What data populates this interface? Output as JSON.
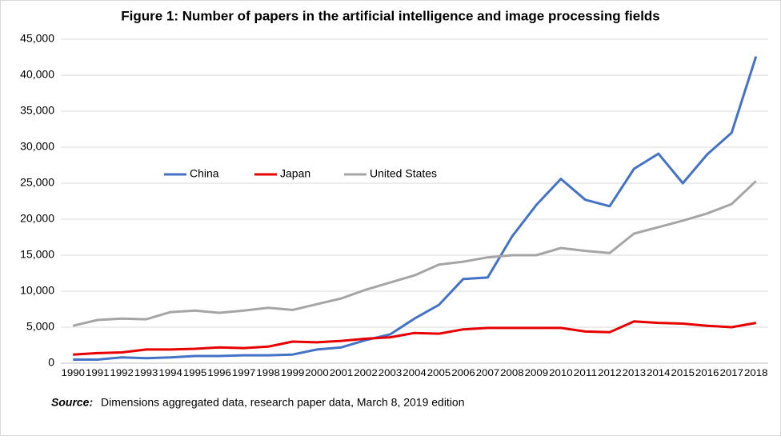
{
  "chart_data": {
    "type": "line",
    "title": "Figure 1: Number of papers in the artificial intelligence and image processing fields",
    "source_label": "Source:",
    "source_text": "Dimensions aggregated data, research paper data, March 8, 2019 edition",
    "categories": [
      "1990",
      "1991",
      "1992",
      "1993",
      "1994",
      "1995",
      "1996",
      "1997",
      "1998",
      "1999",
      "2000",
      "2001",
      "2002",
      "2003",
      "2004",
      "2005",
      "2006",
      "2007",
      "2008",
      "2009",
      "2010",
      "2011",
      "2012",
      "2013",
      "2014",
      "2015",
      "2016",
      "2017",
      "2018"
    ],
    "series": [
      {
        "name": "China",
        "color": "#4472c4",
        "values": [
          500,
          500,
          800,
          700,
          800,
          1000,
          1000,
          1100,
          1100,
          1200,
          1900,
          2200,
          3200,
          4000,
          6200,
          8100,
          11700,
          11900,
          17600,
          22000,
          25600,
          22700,
          21800,
          27000,
          29100,
          25000,
          29000,
          32000,
          42600
        ]
      },
      {
        "name": "Japan",
        "color": "#e60000",
        "values": [
          1200,
          1400,
          1500,
          1900,
          1900,
          2000,
          2200,
          2100,
          2300,
          3000,
          2900,
          3100,
          3400,
          3600,
          4200,
          4100,
          4700,
          4900,
          4900,
          4900,
          4900,
          4400,
          4300,
          5800,
          5600,
          5500,
          5200,
          5000,
          5600
        ]
      },
      {
        "name": "United States",
        "color": "#a5a5a5",
        "values": [
          5200,
          6000,
          6200,
          6100,
          7100,
          7300,
          7000,
          7300,
          7700,
          7400,
          8200,
          9000,
          10200,
          11200,
          12200,
          13700,
          14100,
          14700,
          15000,
          15000,
          16000,
          15600,
          15300,
          18000,
          18900,
          19800,
          20800,
          22100,
          25300
        ]
      }
    ],
    "ylim": [
      0,
      45000
    ],
    "yticks": [
      0,
      {
        "value": 5000,
        "label": "5,000"
      },
      {
        "value": 10000,
        "label": "10,000"
      },
      {
        "value": 15000,
        "label": "15,000"
      },
      {
        "value": 20000,
        "label": "20,000"
      },
      {
        "value": 25000,
        "label": "25,000"
      },
      {
        "value": 30000,
        "label": "30,000"
      },
      {
        "value": 35000,
        "label": "35,000"
      },
      {
        "value": 40000,
        "label": "40,000"
      },
      {
        "value": 45000,
        "label": "45,000"
      }
    ],
    "grid": true
  }
}
